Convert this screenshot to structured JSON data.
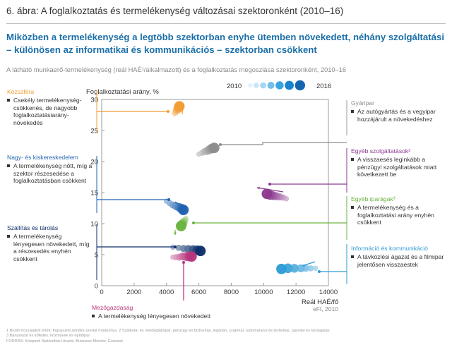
{
  "figure_title": "6. ábra: A foglalkoztatás és termelékenység változásai szektoronként (2010–16)",
  "headline": "Miközben a termelékenység a legtöbb szektorban enyhe ütemben növekedett, néhány szolgáltatási – különösen az informatikai és kommunikációs – szektorban csökkent",
  "subtitle": "A látható munkaerő-termelékenység (reál HAÉ¹/alkalmazott) és a foglalkoztatás megoszlása szektoronként, 2010–16",
  "footnotes": [
    "1 Bruttó hozzáadott érték; fogyasztói árindex szerint módosítva. 2 Szálloda- és vendéglátóipar, pénzügy és biztosítás, ingatlan, szakmai, tudományos és technikai, ügyvitel és támogatás",
    "3 Bányászat és kőfejtés, közművek és építőipar",
    "FORRÁS: Központi Statisztikai Hivatal, Business Monitor, Eurostat"
  ],
  "chart_data": {
    "type": "scatter",
    "ylabel": "Foglalkoztatási arány, %",
    "xlabel": "Reál HAÉ/fő",
    "xlabel_unit": "eFt, 2010",
    "xlim": [
      0,
      14000
    ],
    "ylim": [
      0,
      30
    ],
    "xticks": [
      "0",
      "2000",
      "4000",
      "6000",
      "8000",
      "10000",
      "12000",
      "14000"
    ],
    "yticks": [
      "0",
      "5",
      "10",
      "15",
      "20",
      "25",
      "30"
    ],
    "legend": {
      "start_label": "2010",
      "end_label": "2016",
      "position": "top-right"
    },
    "series": [
      {
        "name": "Közszféra",
        "color": "#f39c34",
        "desc": "Csekély termelékenység-csökkenés, de nagyobb foglalkoztatásiarány-növekedés",
        "x": [
          4500,
          4550,
          4600,
          4650,
          4700,
          4750,
          4800
        ],
        "y": [
          27.7,
          27.9,
          28.1,
          28.3,
          28.5,
          28.7,
          28.9
        ]
      },
      {
        "name": "Gyáripar",
        "color": "#8c8c8c",
        "desc": "Az autógyártás és a vegyipar hozzájárult a növekedéshez",
        "x": [
          6000,
          6200,
          6350,
          6500,
          6650,
          6800,
          6950
        ],
        "y": [
          21.2,
          21.4,
          21.6,
          21.7,
          21.9,
          22.1,
          22.2
        ]
      },
      {
        "name": "Egyéb szolgáltatások²",
        "color": "#8b3a8f",
        "desc": "A visszaesés leginkább a pénzügyi szolgáltatások miatt következett be",
        "x": [
          11400,
          11200,
          11000,
          10800,
          10600,
          10400,
          10200
        ],
        "y": [
          14.0,
          14.2,
          14.3,
          14.4,
          14.5,
          14.6,
          14.8
        ]
      },
      {
        "name": "Nagy- és kiskereskedelem",
        "color": "#1f63b0",
        "desc": "A termelékenység nőtt, míg a szektor részesedése a foglalkoztatásban csökkent",
        "x": [
          4000,
          4200,
          4400,
          4600,
          4800,
          4950,
          5050
        ],
        "y": [
          13.6,
          13.3,
          13.0,
          12.8,
          12.6,
          12.4,
          12.2
        ]
      },
      {
        "name": "Egyéb iparágak³",
        "color": "#6cb33f",
        "desc": "A termelékenység és a foglalkoztatási arány enyhén csökkent",
        "x": [
          5200,
          5150,
          5100,
          5050,
          5000,
          4950,
          4900
        ],
        "y": [
          10.8,
          10.6,
          10.4,
          10.2,
          10.0,
          9.8,
          9.6
        ]
      },
      {
        "name": "Szállítás és tárolás",
        "color": "#0d2f6b",
        "desc": "A termelékenység lényegesen növekedett, míg a részesedés enyhén csökkent",
        "x": [
          4400,
          4750,
          5050,
          5350,
          5650,
          5900,
          6100
        ],
        "y": [
          6.2,
          6.1,
          6.0,
          5.9,
          5.8,
          5.7,
          5.6
        ]
      },
      {
        "name": "Mezőgazdaság",
        "color": "#b7357d",
        "desc": "A termelékenység lényegesen növekedett",
        "x": [
          4400,
          4600,
          4800,
          5000,
          5200,
          5400,
          5550
        ],
        "y": [
          4.6,
          4.6,
          4.6,
          4.7,
          4.7,
          4.7,
          4.7
        ]
      },
      {
        "name": "Információ és kommunikáció",
        "color": "#2d9bd6",
        "desc": "A távközlési ágazat és a filmipar jelentősen visszaestek",
        "x": [
          13200,
          12900,
          12600,
          12300,
          11900,
          11500,
          11100
        ],
        "y": [
          2.8,
          2.8,
          2.8,
          2.8,
          2.8,
          2.8,
          2.7
        ]
      }
    ]
  }
}
